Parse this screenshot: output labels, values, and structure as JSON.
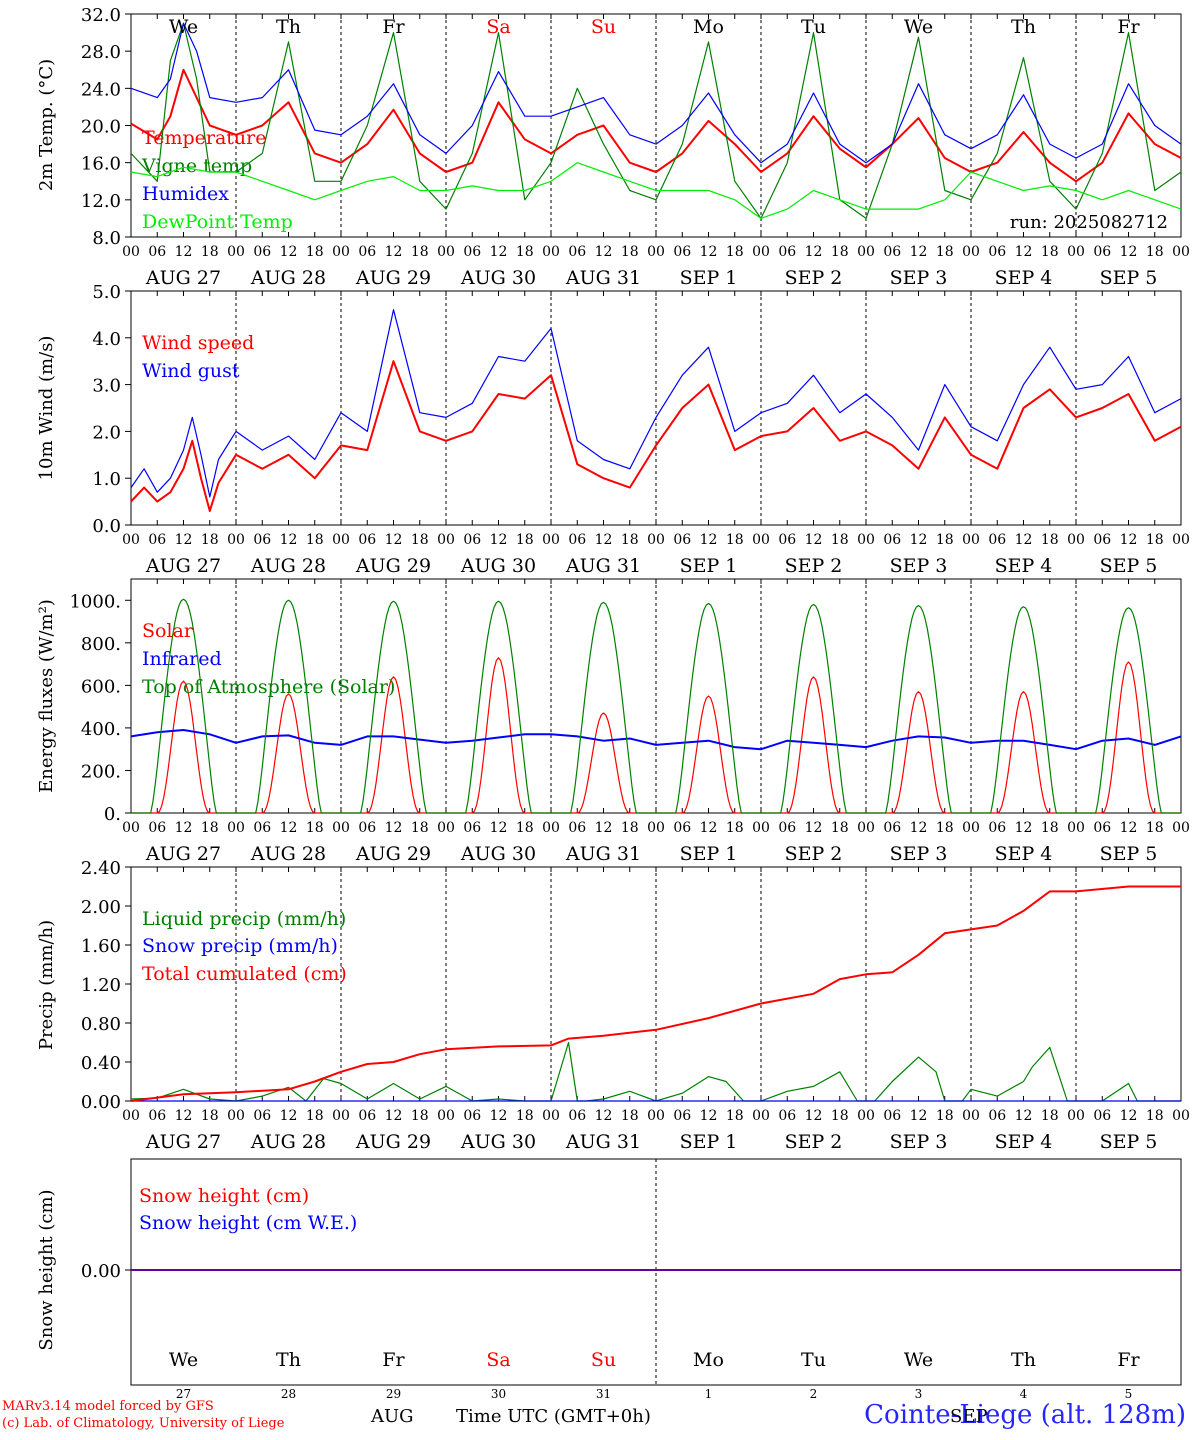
{
  "run_label": "run: 2025082712",
  "credit_line1": "MARv3.14 model forced by GFS",
  "credit_line2": "(c) Lab. of Climatology, University of Liege",
  "footer_month": "AUG",
  "footer_month2": "SEP",
  "footer_time_label": "Time UTC (GMT+0h)",
  "station_label": "Cointe-Liege (alt. 128m)",
  "colors": {
    "red": "#ff0000",
    "blue": "#0000ff",
    "green": "#008000",
    "lightgreen": "#00ee00",
    "black": "#000000"
  },
  "time_axis": {
    "hour_ticks": [
      "00",
      "06",
      "12",
      "18"
    ],
    "end_tick": "00",
    "day_labels": [
      "AUG 27",
      "AUG 28",
      "AUG 29",
      "AUG 30",
      "AUG 31",
      "SEP  1",
      "SEP  2",
      "SEP  3",
      "SEP  4",
      "SEP  5"
    ],
    "weekdays": [
      "We",
      "Th",
      "Fr",
      "Sa",
      "Su",
      "Mo",
      "Tu",
      "We",
      "Th",
      "Fr"
    ],
    "weekend_flags": [
      false,
      false,
      false,
      true,
      true,
      false,
      false,
      false,
      false,
      false
    ],
    "day_numbers": [
      "27",
      "28",
      "29",
      "30",
      "31",
      "1",
      "2",
      "3",
      "4",
      "5"
    ]
  },
  "chart_data": [
    {
      "type": "line",
      "ylabel": "2m Temp. (°C)",
      "ylim": [
        8.0,
        32.0
      ],
      "yticks": [
        "8.0",
        "12.0",
        "16.0",
        "20.0",
        "24.0",
        "28.0",
        "32.0"
      ],
      "x_unit": "hours since 2025-08-27 00 UTC",
      "series": [
        {
          "name": "Temperature",
          "color": "#ff0000",
          "x": [
            0,
            6,
            9,
            12,
            15,
            18,
            24,
            30,
            36,
            42,
            48,
            54,
            60,
            66,
            72,
            78,
            84,
            90,
            96,
            102,
            108,
            114,
            120,
            126,
            132,
            138,
            144,
            150,
            156,
            162,
            168,
            174,
            180,
            186,
            192,
            198,
            204,
            210,
            216,
            222,
            228,
            234,
            240
          ],
          "y": [
            20.2,
            18.5,
            21,
            26,
            23,
            20,
            19,
            20,
            22.5,
            17,
            16,
            18,
            21.7,
            17,
            15,
            16,
            22.5,
            18.5,
            17,
            19,
            20,
            16,
            15,
            17,
            20.5,
            18,
            15,
            17,
            21,
            17.5,
            15.5,
            18,
            20.8,
            16.5,
            15,
            16,
            19.3,
            16,
            14,
            16,
            21.3,
            18,
            16.5
          ]
        },
        {
          "name": "Vigne temp",
          "color": "#008000",
          "x": [
            0,
            6,
            9,
            12,
            15,
            18,
            24,
            30,
            36,
            42,
            48,
            54,
            60,
            66,
            72,
            78,
            84,
            90,
            96,
            102,
            108,
            114,
            120,
            126,
            132,
            138,
            144,
            150,
            156,
            162,
            168,
            174,
            180,
            186,
            192,
            198,
            204,
            210,
            216,
            222,
            228,
            234,
            240
          ],
          "y": [
            17,
            14,
            27,
            31,
            25,
            15,
            15,
            17,
            29,
            14,
            14,
            20,
            30,
            14,
            11,
            17,
            30,
            12,
            16,
            24,
            18,
            13,
            12,
            18,
            29,
            14,
            10,
            16,
            30,
            12,
            10,
            18,
            29.5,
            13,
            12,
            17,
            27.3,
            14,
            11,
            17,
            30,
            13,
            15
          ]
        },
        {
          "name": "Humidex",
          "color": "#0000ff",
          "x": [
            0,
            6,
            9,
            12,
            15,
            18,
            24,
            30,
            36,
            42,
            48,
            54,
            60,
            66,
            72,
            78,
            84,
            90,
            96,
            102,
            108,
            114,
            120,
            126,
            132,
            138,
            144,
            150,
            156,
            162,
            168,
            174,
            180,
            186,
            192,
            198,
            204,
            210,
            216,
            222,
            228,
            234,
            240
          ],
          "y": [
            24,
            23,
            25,
            31,
            28,
            23,
            22.5,
            23,
            26,
            19.5,
            19,
            21,
            24.5,
            19,
            17,
            20,
            25.8,
            21,
            21,
            22,
            23,
            19,
            18,
            20,
            23.5,
            19,
            16,
            18,
            23.5,
            18,
            16,
            18,
            24.5,
            19,
            17.5,
            19,
            23.3,
            18,
            16.5,
            18,
            24.5,
            20,
            18
          ]
        },
        {
          "name": "DewPoint Temp",
          "color": "#00ee00",
          "x": [
            0,
            6,
            12,
            18,
            24,
            30,
            36,
            42,
            48,
            54,
            60,
            66,
            72,
            78,
            84,
            90,
            96,
            102,
            108,
            114,
            120,
            126,
            132,
            138,
            144,
            150,
            156,
            162,
            168,
            174,
            180,
            186,
            192,
            198,
            204,
            210,
            216,
            222,
            228,
            234,
            240
          ],
          "y": [
            15,
            14.5,
            15.5,
            15,
            15,
            14,
            13,
            12,
            13,
            14,
            14.5,
            13,
            13,
            13.5,
            13,
            13,
            14,
            16,
            15,
            14,
            13,
            13,
            13,
            12,
            10,
            11,
            13,
            12,
            11,
            11,
            11,
            12,
            15,
            14,
            13,
            13.5,
            13,
            12,
            13,
            12,
            11
          ]
        }
      ]
    },
    {
      "type": "line",
      "ylabel": "10m Wind (m/s)",
      "ylim": [
        0.0,
        5.0
      ],
      "yticks": [
        "0.0",
        "1.0",
        "2.0",
        "3.0",
        "4.0",
        "5.0"
      ],
      "x_unit": "hours since 2025-08-27 00 UTC",
      "series": [
        {
          "name": "Wind speed",
          "color": "#ff0000",
          "x": [
            0,
            3,
            6,
            9,
            12,
            14,
            16,
            18,
            20,
            24,
            30,
            36,
            42,
            48,
            54,
            60,
            66,
            72,
            78,
            84,
            90,
            96,
            102,
            108,
            114,
            120,
            126,
            132,
            138,
            144,
            150,
            156,
            162,
            168,
            174,
            180,
            186,
            192,
            198,
            204,
            210,
            216,
            222,
            228,
            234,
            240
          ],
          "y": [
            0.5,
            0.8,
            0.5,
            0.7,
            1.2,
            1.8,
            1.0,
            0.3,
            0.9,
            1.5,
            1.2,
            1.5,
            1.0,
            1.7,
            1.6,
            3.5,
            2.0,
            1.8,
            2.0,
            2.8,
            2.7,
            3.2,
            1.3,
            1.0,
            0.8,
            1.7,
            2.5,
            3.0,
            1.6,
            1.9,
            2.0,
            2.5,
            1.8,
            2.0,
            1.7,
            1.2,
            2.3,
            1.5,
            1.2,
            2.5,
            2.9,
            2.3,
            2.5,
            2.8,
            1.8,
            2.1
          ]
        },
        {
          "name": "Wind gust",
          "color": "#0000ff",
          "x": [
            0,
            3,
            6,
            9,
            12,
            14,
            16,
            18,
            20,
            24,
            30,
            36,
            42,
            48,
            54,
            60,
            66,
            72,
            78,
            84,
            90,
            96,
            102,
            108,
            114,
            120,
            126,
            132,
            138,
            144,
            150,
            156,
            162,
            168,
            174,
            180,
            186,
            192,
            198,
            204,
            210,
            216,
            222,
            228,
            234,
            240
          ],
          "y": [
            0.8,
            1.2,
            0.7,
            1.0,
            1.6,
            2.3,
            1.5,
            0.6,
            1.4,
            2.0,
            1.6,
            1.9,
            1.4,
            2.4,
            2.0,
            4.6,
            2.4,
            2.3,
            2.6,
            3.6,
            3.5,
            4.2,
            1.8,
            1.4,
            1.2,
            2.3,
            3.2,
            3.8,
            2.0,
            2.4,
            2.6,
            3.2,
            2.4,
            2.8,
            2.3,
            1.6,
            3.0,
            2.1,
            1.8,
            3.0,
            3.8,
            2.9,
            3.0,
            3.6,
            2.4,
            2.7
          ]
        }
      ]
    },
    {
      "type": "line",
      "ylabel": "Energy fluxes (W/m²)",
      "ylim": [
        0,
        1100
      ],
      "yticks": [
        "0.",
        "200.",
        "400.",
        "600.",
        "800.",
        "1000."
      ],
      "x_unit": "hours since 2025-08-27 00 UTC",
      "series": [
        {
          "name": "Solar",
          "color": "#ff0000",
          "peaks": [
            620,
            560,
            640,
            730,
            470,
            550,
            640,
            570,
            570,
            710
          ]
        },
        {
          "name": "Infrared",
          "color": "#0000ff",
          "x": [
            0,
            6,
            12,
            18,
            24,
            30,
            36,
            42,
            48,
            54,
            60,
            66,
            72,
            78,
            84,
            90,
            96,
            102,
            108,
            114,
            120,
            126,
            132,
            138,
            144,
            150,
            156,
            162,
            168,
            174,
            180,
            186,
            192,
            198,
            204,
            210,
            216,
            222,
            228,
            234,
            240
          ],
          "y": [
            360,
            380,
            390,
            370,
            330,
            360,
            365,
            330,
            320,
            360,
            360,
            345,
            330,
            340,
            355,
            370,
            370,
            360,
            340,
            350,
            320,
            330,
            340,
            310,
            300,
            340,
            330,
            320,
            310,
            340,
            360,
            355,
            330,
            340,
            340,
            320,
            300,
            340,
            350,
            320,
            360
          ]
        },
        {
          "name": "Top of Atmosphere (Solar)",
          "color": "#008000",
          "peaks": [
            1005,
            1000,
            995,
            995,
            990,
            985,
            980,
            975,
            970,
            965
          ]
        }
      ]
    },
    {
      "type": "line",
      "ylabel": "Precip (mm/h)",
      "ylim": [
        0.0,
        2.4
      ],
      "yticks": [
        "0.00",
        "0.40",
        "0.80",
        "1.20",
        "1.60",
        "2.00",
        "2.40"
      ],
      "x_unit": "hours since 2025-08-27 00 UTC",
      "series": [
        {
          "name": "Liquid precip (mm/h)",
          "color": "#008000",
          "x": [
            0,
            6,
            12,
            18,
            24,
            30,
            36,
            40,
            44,
            48,
            54,
            60,
            66,
            72,
            78,
            84,
            90,
            96,
            100,
            102,
            104,
            108,
            114,
            120,
            126,
            132,
            136,
            140,
            144,
            150,
            156,
            162,
            166,
            170,
            174,
            180,
            184,
            186,
            190,
            192,
            198,
            204,
            206,
            210,
            214,
            216,
            222,
            228,
            230,
            234,
            240
          ],
          "y": [
            0.02,
            0.03,
            0.12,
            0.02,
            0.0,
            0.05,
            0.14,
            0.0,
            0.23,
            0.18,
            0.02,
            0.18,
            0.02,
            0.15,
            0.0,
            0.02,
            0.0,
            0.0,
            0.6,
            0.0,
            0.0,
            0.02,
            0.1,
            0.0,
            0.08,
            0.25,
            0.2,
            0.0,
            0.0,
            0.1,
            0.15,
            0.3,
            0.0,
            0.0,
            0.2,
            0.45,
            0.3,
            0.0,
            0.0,
            0.12,
            0.05,
            0.2,
            0.35,
            0.55,
            0.0,
            0.0,
            0.0,
            0.18,
            0.0,
            0.0,
            0.0
          ]
        },
        {
          "name": "Snow precip (mm/h)",
          "color": "#0000ff",
          "x": [
            0,
            240
          ],
          "y": [
            0.0,
            0.0
          ]
        },
        {
          "name": "Total cumulated (cm)",
          "color": "#ff0000",
          "x": [
            0,
            12,
            24,
            36,
            42,
            48,
            54,
            60,
            66,
            72,
            84,
            96,
            100,
            108,
            120,
            132,
            144,
            156,
            162,
            168,
            174,
            180,
            186,
            192,
            198,
            204,
            210,
            216,
            228,
            240
          ],
          "y": [
            0.0,
            0.07,
            0.09,
            0.12,
            0.2,
            0.3,
            0.38,
            0.4,
            0.48,
            0.53,
            0.56,
            0.57,
            0.64,
            0.67,
            0.73,
            0.85,
            1.0,
            1.1,
            1.25,
            1.3,
            1.32,
            1.5,
            1.72,
            1.76,
            1.8,
            1.95,
            2.15,
            2.15,
            2.2,
            2.2
          ]
        }
      ]
    },
    {
      "type": "line",
      "ylabel": "Snow height (cm)",
      "yticks": [
        "0.00"
      ],
      "x_unit": "hours since 2025-08-27 00 UTC",
      "series": [
        {
          "name": "Snow height (cm)",
          "color": "#ff0000",
          "x": [
            0,
            240
          ],
          "y": [
            0.0,
            0.0
          ]
        },
        {
          "name": "Snow height (cm W.E.)",
          "color": "#0000ff",
          "x": [
            0,
            240
          ],
          "y": [
            0.0,
            0.0
          ]
        }
      ]
    }
  ]
}
